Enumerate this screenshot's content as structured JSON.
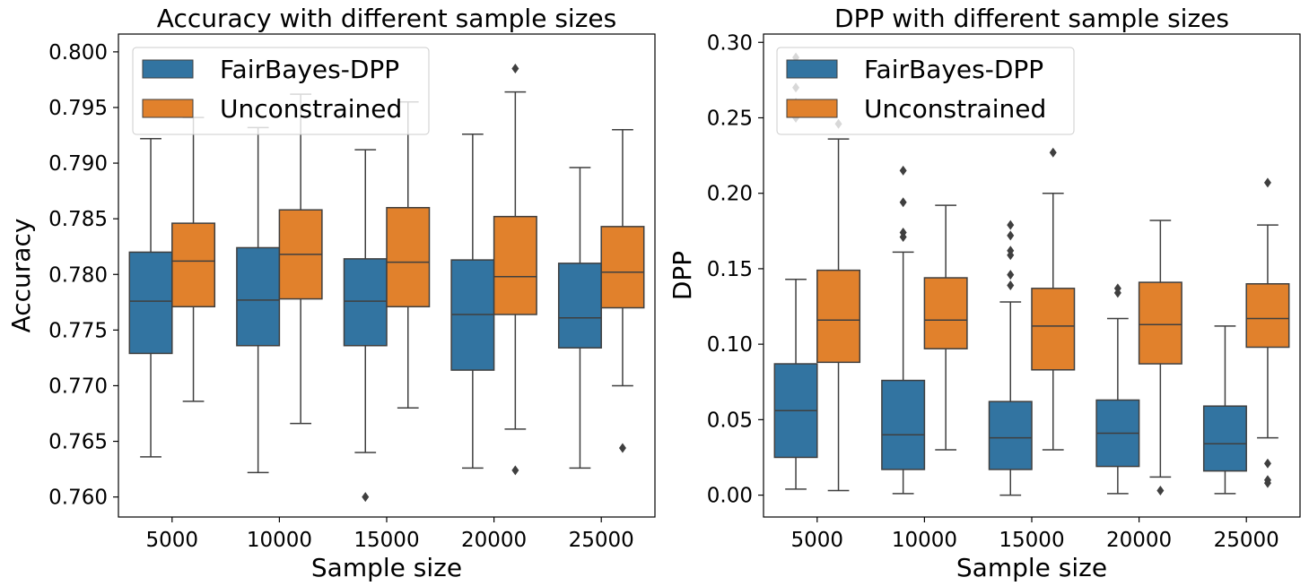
{
  "chart_data": [
    {
      "type": "box",
      "title": "Accuracy with different sample sizes",
      "xlabel": "Sample size",
      "ylabel": "Accuracy",
      "ylim": [
        0.7582,
        0.8016
      ],
      "yticks": [
        0.76,
        0.765,
        0.77,
        0.775,
        0.78,
        0.785,
        0.79,
        0.795,
        0.8
      ],
      "ytick_labels": [
        "0.760",
        "0.765",
        "0.770",
        "0.775",
        "0.780",
        "0.785",
        "0.790",
        "0.795",
        "0.800"
      ],
      "categories": [
        "5000",
        "10000",
        "15000",
        "20000",
        "25000"
      ],
      "legend": {
        "placement": "top-left"
      },
      "series": [
        {
          "name": "FairBayes-DPP",
          "color": "#3274a1",
          "boxes": [
            {
              "whisker_low": 0.7636,
              "q1": 0.7729,
              "median": 0.7776,
              "q3": 0.782,
              "whisker_high": 0.7922,
              "outliers": []
            },
            {
              "whisker_low": 0.7622,
              "q1": 0.7736,
              "median": 0.7777,
              "q3": 0.7824,
              "whisker_high": 0.7932,
              "outliers": []
            },
            {
              "whisker_low": 0.764,
              "q1": 0.7736,
              "median": 0.7776,
              "q3": 0.7814,
              "whisker_high": 0.7912,
              "outliers": [
                0.76
              ]
            },
            {
              "whisker_low": 0.7626,
              "q1": 0.7714,
              "median": 0.7764,
              "q3": 0.7813,
              "whisker_high": 0.7926,
              "outliers": []
            },
            {
              "whisker_low": 0.7626,
              "q1": 0.7734,
              "median": 0.7761,
              "q3": 0.781,
              "whisker_high": 0.7896,
              "outliers": []
            }
          ]
        },
        {
          "name": "Unconstrained",
          "color": "#e1812c",
          "boxes": [
            {
              "whisker_low": 0.7686,
              "q1": 0.7771,
              "median": 0.7812,
              "q3": 0.7846,
              "whisker_high": 0.7941,
              "outliers": []
            },
            {
              "whisker_low": 0.7666,
              "q1": 0.7778,
              "median": 0.7818,
              "q3": 0.7858,
              "whisker_high": 0.7962,
              "outliers": []
            },
            {
              "whisker_low": 0.768,
              "q1": 0.7771,
              "median": 0.7811,
              "q3": 0.786,
              "whisker_high": 0.7955,
              "outliers": []
            },
            {
              "whisker_low": 0.7661,
              "q1": 0.7764,
              "median": 0.7798,
              "q3": 0.7852,
              "whisker_high": 0.7964,
              "outliers": [
                0.7624,
                0.7985
              ]
            },
            {
              "whisker_low": 0.77,
              "q1": 0.777,
              "median": 0.7802,
              "q3": 0.7843,
              "whisker_high": 0.793,
              "outliers": [
                0.7644
              ]
            }
          ]
        }
      ]
    },
    {
      "type": "box",
      "title": "DPP with different sample sizes",
      "xlabel": "Sample size",
      "ylabel": "DPP",
      "ylim": [
        -0.0145,
        0.3055
      ],
      "yticks": [
        0.0,
        0.05,
        0.1,
        0.15,
        0.2,
        0.25,
        0.3
      ],
      "ytick_labels": [
        "0.00",
        "0.05",
        "0.10",
        "0.15",
        "0.20",
        "0.25",
        "0.30"
      ],
      "categories": [
        "5000",
        "10000",
        "15000",
        "20000",
        "25000"
      ],
      "legend": {
        "placement": "top-left"
      },
      "series": [
        {
          "name": "FairBayes-DPP",
          "color": "#3274a1",
          "boxes": [
            {
              "whisker_low": 0.004,
              "q1": 0.025,
              "median": 0.056,
              "q3": 0.087,
              "whisker_high": 0.143,
              "outliers": [
                0.25,
                0.26,
                0.27,
                0.28,
                0.29
              ]
            },
            {
              "whisker_low": 0.001,
              "q1": 0.017,
              "median": 0.04,
              "q3": 0.076,
              "whisker_high": 0.161,
              "outliers": [
                0.171,
                0.174,
                0.194,
                0.215
              ]
            },
            {
              "whisker_low": 0.0,
              "q1": 0.017,
              "median": 0.038,
              "q3": 0.062,
              "whisker_high": 0.128,
              "outliers": [
                0.139,
                0.146,
                0.159,
                0.162,
                0.172,
                0.179
              ]
            },
            {
              "whisker_low": 0.001,
              "q1": 0.019,
              "median": 0.041,
              "q3": 0.063,
              "whisker_high": 0.117,
              "outliers": [
                0.134,
                0.137
              ]
            },
            {
              "whisker_low": 0.001,
              "q1": 0.016,
              "median": 0.034,
              "q3": 0.059,
              "whisker_high": 0.112,
              "outliers": []
            }
          ]
        },
        {
          "name": "Unconstrained",
          "color": "#e1812c",
          "boxes": [
            {
              "whisker_low": 0.003,
              "q1": 0.088,
              "median": 0.116,
              "q3": 0.149,
              "whisker_high": 0.236,
              "outliers": [
                0.246
              ]
            },
            {
              "whisker_low": 0.03,
              "q1": 0.097,
              "median": 0.116,
              "q3": 0.144,
              "whisker_high": 0.192,
              "outliers": []
            },
            {
              "whisker_low": 0.03,
              "q1": 0.083,
              "median": 0.112,
              "q3": 0.137,
              "whisker_high": 0.2,
              "outliers": [
                0.227
              ]
            },
            {
              "whisker_low": 0.012,
              "q1": 0.087,
              "median": 0.113,
              "q3": 0.141,
              "whisker_high": 0.182,
              "outliers": [
                0.003
              ]
            },
            {
              "whisker_low": 0.038,
              "q1": 0.098,
              "median": 0.117,
              "q3": 0.14,
              "whisker_high": 0.179,
              "outliers": [
                0.008,
                0.01,
                0.021,
                0.207
              ]
            }
          ]
        }
      ]
    }
  ]
}
